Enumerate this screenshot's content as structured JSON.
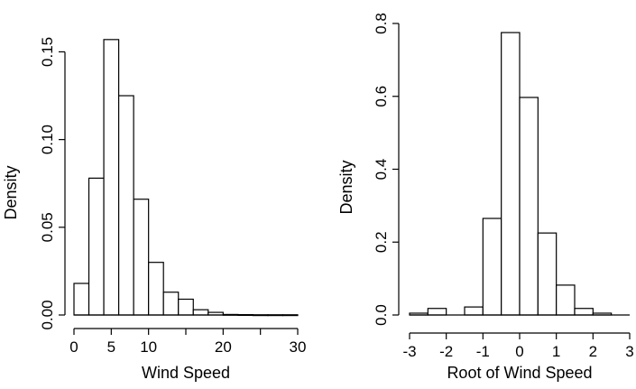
{
  "chart_data": [
    {
      "type": "bar",
      "subtype": "histogram",
      "xlabel": "Wind Speed",
      "ylabel": "Density",
      "xlim": [
        0,
        30
      ],
      "ylim": [
        0,
        0.16
      ],
      "xticks": [
        "0",
        "5",
        "10",
        "15",
        "20",
        "25",
        "30"
      ],
      "xtick_values": [
        0,
        5,
        10,
        15,
        20,
        25,
        30
      ],
      "xtick_labels_shown": [
        "0",
        "5",
        "10",
        "",
        "20",
        "",
        "30"
      ],
      "yticks": [
        "0.00",
        "0.05",
        "0.10",
        "0.15"
      ],
      "ytick_values": [
        0,
        0.05,
        0.1,
        0.15
      ],
      "bins": [
        {
          "from": 0,
          "to": 2,
          "density": 0.018
        },
        {
          "from": 2,
          "to": 4,
          "density": 0.078
        },
        {
          "from": 4,
          "to": 6,
          "density": 0.157
        },
        {
          "from": 6,
          "to": 8,
          "density": 0.125
        },
        {
          "from": 8,
          "to": 10,
          "density": 0.066
        },
        {
          "from": 10,
          "to": 12,
          "density": 0.03
        },
        {
          "from": 12,
          "to": 14,
          "density": 0.013
        },
        {
          "from": 14,
          "to": 16,
          "density": 0.009
        },
        {
          "from": 16,
          "to": 18,
          "density": 0.003
        },
        {
          "from": 18,
          "to": 20,
          "density": 0.0015
        },
        {
          "from": 20,
          "to": 22,
          "density": 0.0003
        },
        {
          "from": 22,
          "to": 24,
          "density": 0.0002
        },
        {
          "from": 24,
          "to": 26,
          "density": 0.0001
        },
        {
          "from": 26,
          "to": 28,
          "density": 0.0001
        },
        {
          "from": 28,
          "to": 30,
          "density": 0.0001
        }
      ],
      "grid": false
    },
    {
      "type": "bar",
      "subtype": "histogram",
      "xlabel": "Root of Wind Speed",
      "ylabel": "Density",
      "xlim": [
        -3,
        3
      ],
      "ylim": [
        0,
        0.8
      ],
      "xticks": [
        "-3",
        "-2",
        "-1",
        "0",
        "1",
        "2",
        "3"
      ],
      "xtick_values": [
        -3,
        -2,
        -1,
        0,
        1,
        2,
        3
      ],
      "xtick_labels_shown": [
        "-3",
        "-2",
        "-1",
        "0",
        "1",
        "2",
        "3"
      ],
      "yticks": [
        "0.0",
        "0.2",
        "0.4",
        "0.6",
        "0.8"
      ],
      "ytick_values": [
        0,
        0.2,
        0.4,
        0.6,
        0.8
      ],
      "bins": [
        {
          "from": -3.0,
          "to": -2.5,
          "density": 0.005
        },
        {
          "from": -2.5,
          "to": -2.0,
          "density": 0.018
        },
        {
          "from": -2.0,
          "to": -1.5,
          "density": 0.0
        },
        {
          "from": -1.5,
          "to": -1.0,
          "density": 0.022
        },
        {
          "from": -1.0,
          "to": -0.5,
          "density": 0.265
        },
        {
          "from": -0.5,
          "to": 0.0,
          "density": 0.775
        },
        {
          "from": 0.0,
          "to": 0.5,
          "density": 0.597
        },
        {
          "from": 0.5,
          "to": 1.0,
          "density": 0.225
        },
        {
          "from": 1.0,
          "to": 1.5,
          "density": 0.082
        },
        {
          "from": 1.5,
          "to": 2.0,
          "density": 0.018
        },
        {
          "from": 2.0,
          "to": 2.5,
          "density": 0.005
        },
        {
          "from": 2.5,
          "to": 3.0,
          "density": 0.0
        }
      ],
      "grid": false
    }
  ]
}
